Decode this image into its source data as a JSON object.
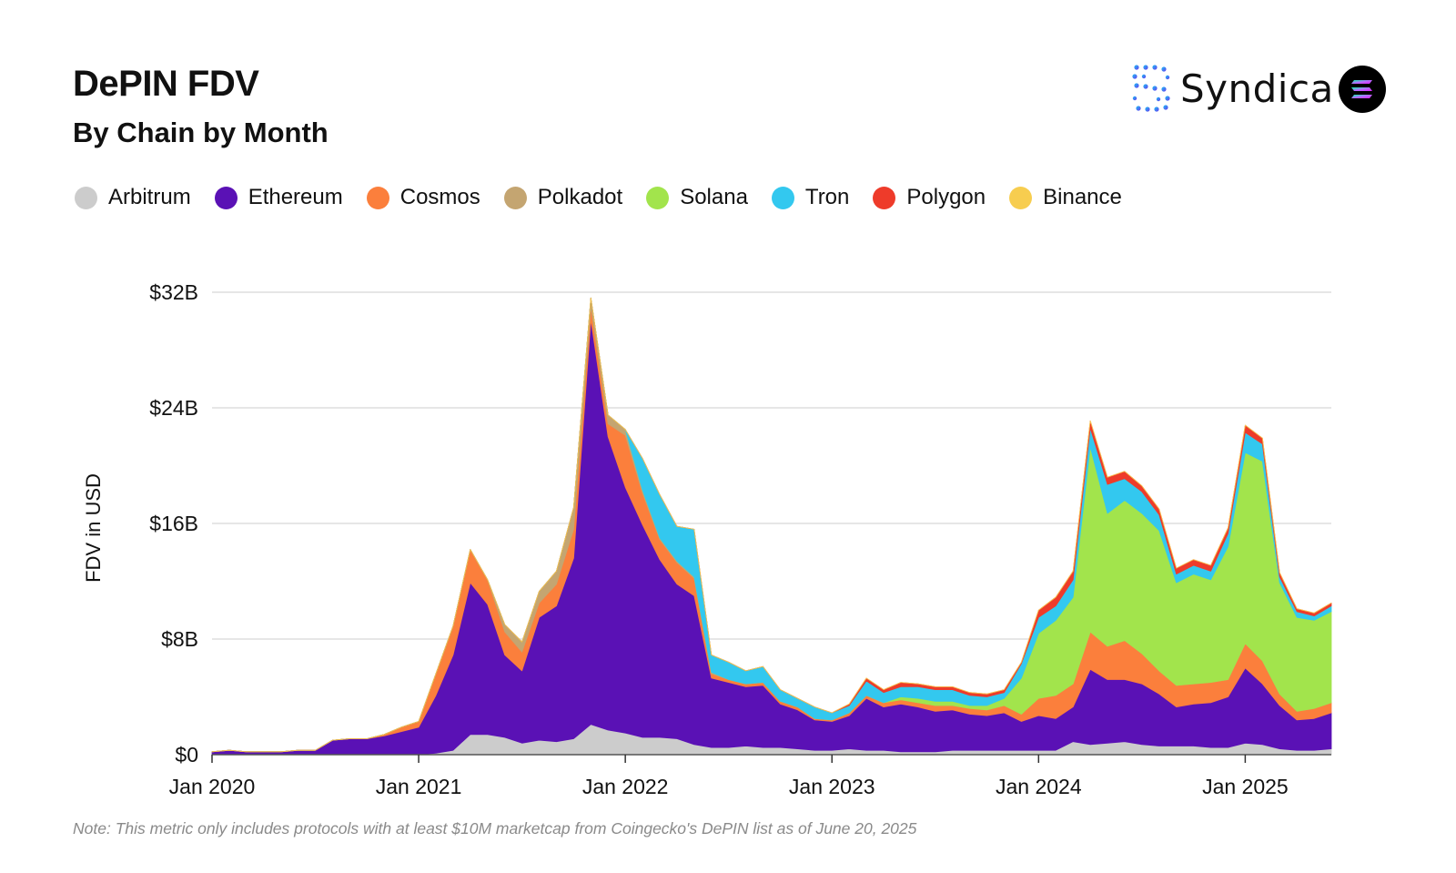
{
  "title": "DePIN FDV",
  "subtitle": "By Chain by Month",
  "brand": {
    "name": "Syndica",
    "badge_icon": "solana-logo-icon",
    "mark_icon": "syndica-logo-icon"
  },
  "note": "Note: This metric only includes protocols with at least $10M marketcap from Coingecko's DePIN list as of June 20, 2025",
  "chart_data": {
    "type": "area",
    "stacked": true,
    "title": "DePIN FDV",
    "subtitle": "By Chain by Month",
    "xlabel": "",
    "ylabel": "FDV in USD",
    "ylim": [
      0,
      32
    ],
    "y_unit": "$B",
    "yticks": [
      0,
      8,
      16,
      24,
      32
    ],
    "ytick_labels": [
      "$0",
      "$8B",
      "$16B",
      "$24B",
      "$32B"
    ],
    "xtick_labels": [
      "Jan 2020",
      "Jan 2021",
      "Jan 2022",
      "Jan 2023",
      "Jan 2024",
      "Jan 2025"
    ],
    "xtick_index": [
      0,
      12,
      24,
      36,
      48,
      60
    ],
    "legend_position": "top-left",
    "grid": true,
    "x": [
      "2020-01",
      "2020-02",
      "2020-03",
      "2020-04",
      "2020-05",
      "2020-06",
      "2020-07",
      "2020-08",
      "2020-09",
      "2020-10",
      "2020-11",
      "2020-12",
      "2021-01",
      "2021-02",
      "2021-03",
      "2021-04",
      "2021-05",
      "2021-06",
      "2021-07",
      "2021-08",
      "2021-09",
      "2021-10",
      "2021-11",
      "2021-12",
      "2022-01",
      "2022-02",
      "2022-03",
      "2022-04",
      "2022-05",
      "2022-06",
      "2022-07",
      "2022-08",
      "2022-09",
      "2022-10",
      "2022-11",
      "2022-12",
      "2023-01",
      "2023-02",
      "2023-03",
      "2023-04",
      "2023-05",
      "2023-06",
      "2023-07",
      "2023-08",
      "2023-09",
      "2023-10",
      "2023-11",
      "2023-12",
      "2024-01",
      "2024-02",
      "2024-03",
      "2024-04",
      "2024-05",
      "2024-06",
      "2024-07",
      "2024-08",
      "2024-09",
      "2024-10",
      "2024-11",
      "2024-12",
      "2025-01",
      "2025-02",
      "2025-03",
      "2025-04",
      "2025-05",
      "2025-06"
    ],
    "series": [
      {
        "name": "Arbitrum",
        "color": "#cccccc",
        "values": [
          0,
          0,
          0,
          0,
          0,
          0,
          0,
          0,
          0,
          0,
          0,
          0,
          0,
          0.1,
          0.3,
          1.4,
          1.4,
          1.2,
          0.8,
          1.0,
          0.9,
          1.1,
          2.1,
          1.7,
          1.5,
          1.2,
          1.2,
          1.1,
          0.7,
          0.5,
          0.5,
          0.6,
          0.5,
          0.5,
          0.4,
          0.3,
          0.3,
          0.4,
          0.3,
          0.3,
          0.2,
          0.2,
          0.2,
          0.3,
          0.3,
          0.3,
          0.3,
          0.3,
          0.3,
          0.3,
          0.9,
          0.7,
          0.8,
          0.9,
          0.7,
          0.6,
          0.6,
          0.6,
          0.5,
          0.5,
          0.8,
          0.7,
          0.4,
          0.3,
          0.3,
          0.4
        ]
      },
      {
        "name": "Ethereum",
        "color": "#5a11b5",
        "values": [
          0.2,
          0.3,
          0.2,
          0.2,
          0.2,
          0.3,
          0.3,
          1.0,
          1.1,
          1.1,
          1.3,
          1.6,
          1.9,
          4.0,
          6.6,
          10.5,
          9.0,
          5.7,
          5.0,
          8.5,
          9.4,
          12.5,
          28.0,
          20.3,
          17.0,
          14.7,
          12.3,
          10.7,
          10.3,
          4.8,
          4.5,
          4.1,
          4.3,
          3.0,
          2.7,
          2.1,
          2.0,
          2.3,
          3.6,
          3.0,
          3.3,
          3.1,
          2.8,
          2.8,
          2.5,
          2.4,
          2.6,
          2.0,
          2.4,
          2.2,
          2.4,
          5.2,
          4.4,
          4.3,
          4.2,
          3.6,
          2.7,
          2.9,
          3.1,
          3.5,
          5.2,
          4.2,
          3.0,
          2.1,
          2.2,
          2.5
        ]
      },
      {
        "name": "Cosmos",
        "color": "#fb7f3c",
        "values": [
          0,
          0,
          0,
          0,
          0,
          0,
          0,
          0,
          0,
          0,
          0.1,
          0.3,
          0.4,
          1.5,
          2.0,
          2.3,
          1.7,
          1.6,
          1.3,
          1.0,
          1.5,
          2.0,
          0.9,
          0.9,
          3.6,
          2.2,
          1.4,
          1.5,
          1.2,
          0.3,
          0.2,
          0.2,
          0.2,
          0.2,
          0.2,
          0.1,
          0.1,
          0.2,
          0.2,
          0.3,
          0.3,
          0.3,
          0.4,
          0.3,
          0.4,
          0.4,
          0.5,
          0.5,
          1.2,
          1.6,
          1.6,
          2.6,
          2.3,
          2.7,
          2.1,
          1.6,
          1.5,
          1.4,
          1.4,
          1.2,
          1.7,
          1.6,
          0.8,
          0.6,
          0.7,
          0.7
        ]
      },
      {
        "name": "Polkadot",
        "color": "#c4a571",
        "values": [
          0,
          0,
          0,
          0,
          0,
          0,
          0,
          0,
          0,
          0,
          0,
          0,
          0,
          0,
          0,
          0,
          0,
          0.5,
          0.7,
          0.8,
          0.9,
          1.5,
          0.6,
          0.6,
          0.4,
          0.2,
          0.1,
          0.1,
          0.1,
          0.1,
          0,
          0,
          0,
          0,
          0,
          0,
          0,
          0,
          0,
          0,
          0,
          0,
          0,
          0,
          0,
          0,
          0,
          0,
          0,
          0,
          0,
          0,
          0,
          0,
          0,
          0,
          0,
          0,
          0,
          0,
          0,
          0,
          0,
          0,
          0,
          0
        ]
      },
      {
        "name": "Solana",
        "color": "#a2e44c",
        "values": [
          0,
          0,
          0,
          0,
          0,
          0,
          0,
          0,
          0,
          0,
          0,
          0,
          0,
          0,
          0,
          0,
          0,
          0,
          0,
          0,
          0,
          0,
          0,
          0,
          0,
          0,
          0,
          0,
          0,
          0,
          0,
          0,
          0,
          0,
          0,
          0,
          0,
          0,
          0,
          0,
          0.2,
          0.3,
          0.3,
          0.3,
          0.2,
          0.3,
          0.5,
          2.5,
          4.5,
          5.2,
          6.0,
          12.8,
          9.2,
          9.7,
          9.7,
          9.7,
          7.1,
          7.6,
          7.1,
          9.2,
          13.2,
          13.8,
          7.7,
          6.5,
          6.1,
          6.3
        ]
      },
      {
        "name": "Tron",
        "color": "#33c8ef",
        "values": [
          0,
          0,
          0,
          0,
          0,
          0,
          0,
          0,
          0,
          0,
          0,
          0,
          0,
          0,
          0,
          0,
          0,
          0,
          0,
          0,
          0,
          0,
          0,
          0,
          0,
          2.2,
          3.0,
          2.4,
          3.3,
          1.2,
          1.2,
          0.9,
          1.1,
          0.8,
          0.6,
          0.8,
          0.5,
          0.5,
          1.0,
          0.7,
          0.7,
          0.8,
          0.8,
          0.8,
          0.7,
          0.6,
          0.4,
          1.0,
          1.1,
          1.0,
          1.2,
          1.3,
          2.0,
          1.5,
          1.5,
          1.1,
          0.6,
          0.6,
          0.6,
          0.9,
          1.4,
          1.2,
          0.4,
          0.4,
          0.3,
          0.4
        ]
      },
      {
        "name": "Polygon",
        "color": "#ee3b2a",
        "values": [
          0,
          0,
          0,
          0,
          0,
          0,
          0,
          0,
          0,
          0,
          0,
          0,
          0,
          0,
          0,
          0,
          0,
          0,
          0,
          0,
          0,
          0,
          0,
          0,
          0,
          0,
          0,
          0,
          0,
          0,
          0,
          0,
          0,
          0,
          0,
          0,
          0,
          0.1,
          0.2,
          0.2,
          0.3,
          0.2,
          0.2,
          0.2,
          0.2,
          0.2,
          0.2,
          0.1,
          0.5,
          0.6,
          0.6,
          0.5,
          0.5,
          0.5,
          0.4,
          0.4,
          0.4,
          0.4,
          0.4,
          0.4,
          0.5,
          0.4,
          0.3,
          0.2,
          0.2,
          0.2
        ]
      },
      {
        "name": "Binance",
        "color": "#f7cd4f",
        "values": [
          0,
          0,
          0,
          0,
          0,
          0,
          0,
          0,
          0,
          0,
          0,
          0,
          0,
          0,
          0,
          0,
          0,
          0,
          0,
          0,
          0,
          0,
          0,
          0,
          0,
          0,
          0,
          0,
          0,
          0,
          0,
          0,
          0,
          0,
          0,
          0,
          0,
          0,
          0,
          0,
          0,
          0,
          0,
          0,
          0,
          0,
          0,
          0,
          0,
          0,
          0,
          0,
          0,
          0,
          0,
          0,
          0,
          0,
          0,
          0,
          0,
          0,
          0,
          0,
          0,
          0
        ]
      }
    ]
  }
}
